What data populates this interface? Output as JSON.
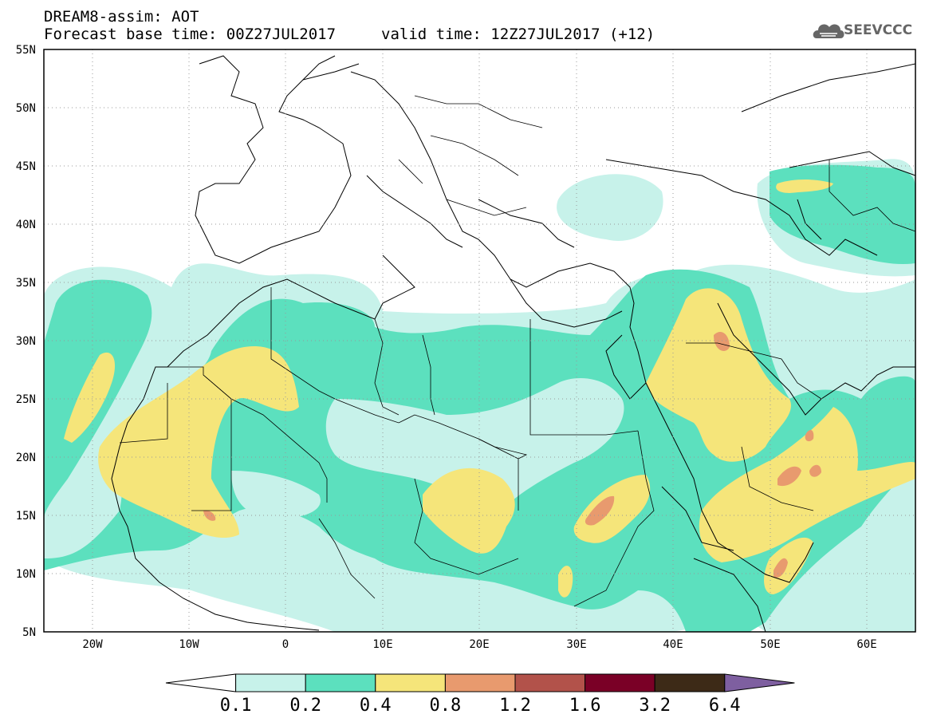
{
  "title": {
    "line1": "DREAM8-assim: AOT",
    "base_time": "Forecast base time: 00Z27JUL2017",
    "valid_time": "valid time: 12Z27JUL2017 (+12)"
  },
  "logo": {
    "text": "SEEVCCC",
    "icon": "cloud-logo-icon"
  },
  "map": {
    "lat_labels": [
      "55N",
      "50N",
      "45N",
      "40N",
      "35N",
      "30N",
      "25N",
      "20N",
      "15N",
      "10N",
      "5N"
    ],
    "lon_labels": [
      "20W",
      "10W",
      "0",
      "10E",
      "20E",
      "30E",
      "40E",
      "50E",
      "60E"
    ],
    "lat_range": [
      5,
      55
    ],
    "lon_range": [
      -25,
      65
    ],
    "field": "AOT",
    "gridlines": "dotted",
    "coastlines": true,
    "borders": true
  },
  "colorbar": {
    "labels": [
      "0.1",
      "0.2",
      "0.4",
      "0.8",
      "1.2",
      "1.6",
      "3.2",
      "6.4"
    ],
    "colors": [
      "#ffffff",
      "#c7f2ea",
      "#5ce0be",
      "#f5e57a",
      "#e89a6e",
      "#b2524a",
      "#7a0026",
      "#3d2a17",
      "#7e5fa0"
    ]
  }
}
